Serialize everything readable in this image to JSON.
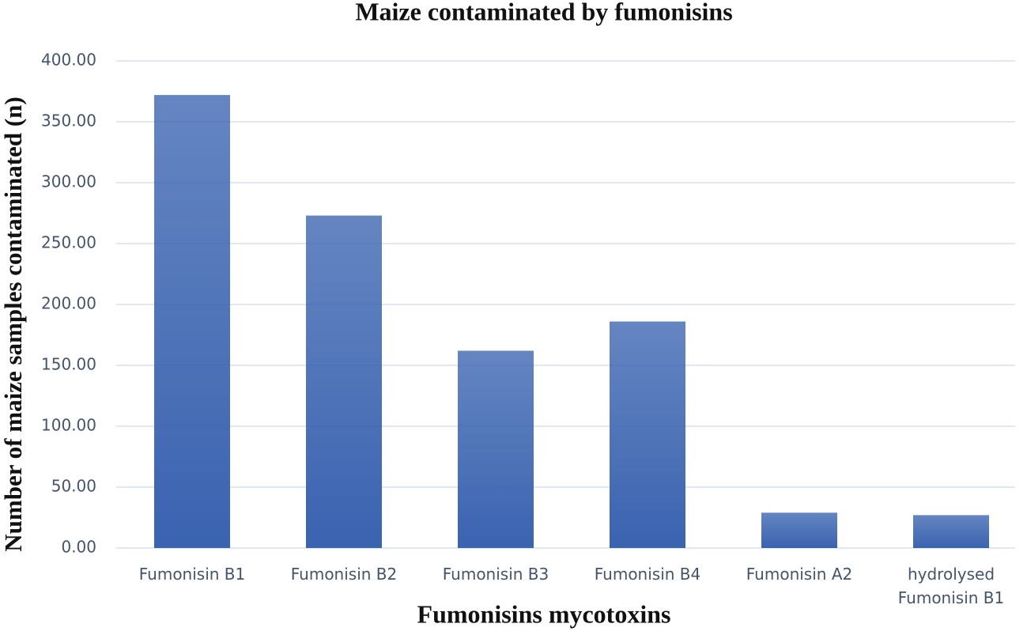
{
  "chart_data": {
    "type": "bar",
    "title": "Maize contaminated by fumonisins",
    "x_label": "Fumonisins mycotoxins",
    "y_label": "Number of maize samples contaminated (n)",
    "categories": [
      "Fumonisin B1",
      "Fumonisin B2",
      "Fumonisin B3",
      "Fumonisin B4",
      "Fumonisin A2",
      "hydrolysed Fumonisin B1"
    ],
    "values": [
      372,
      273,
      162,
      186,
      29,
      27
    ],
    "color": "#3a63b0",
    "ylim": [
      0,
      400
    ],
    "yticks": [
      {
        "value": 0,
        "label": "0.00"
      },
      {
        "value": 50,
        "label": "50.00"
      },
      {
        "value": 100,
        "label": "100.00"
      },
      {
        "value": 150,
        "label": "150.00"
      },
      {
        "value": 200,
        "label": "200.00"
      },
      {
        "value": 250,
        "label": "250.00"
      },
      {
        "value": 300,
        "label": "300.00"
      },
      {
        "value": 350,
        "label": "350.00"
      },
      {
        "value": 400,
        "label": "400.00"
      }
    ],
    "grid": true
  }
}
